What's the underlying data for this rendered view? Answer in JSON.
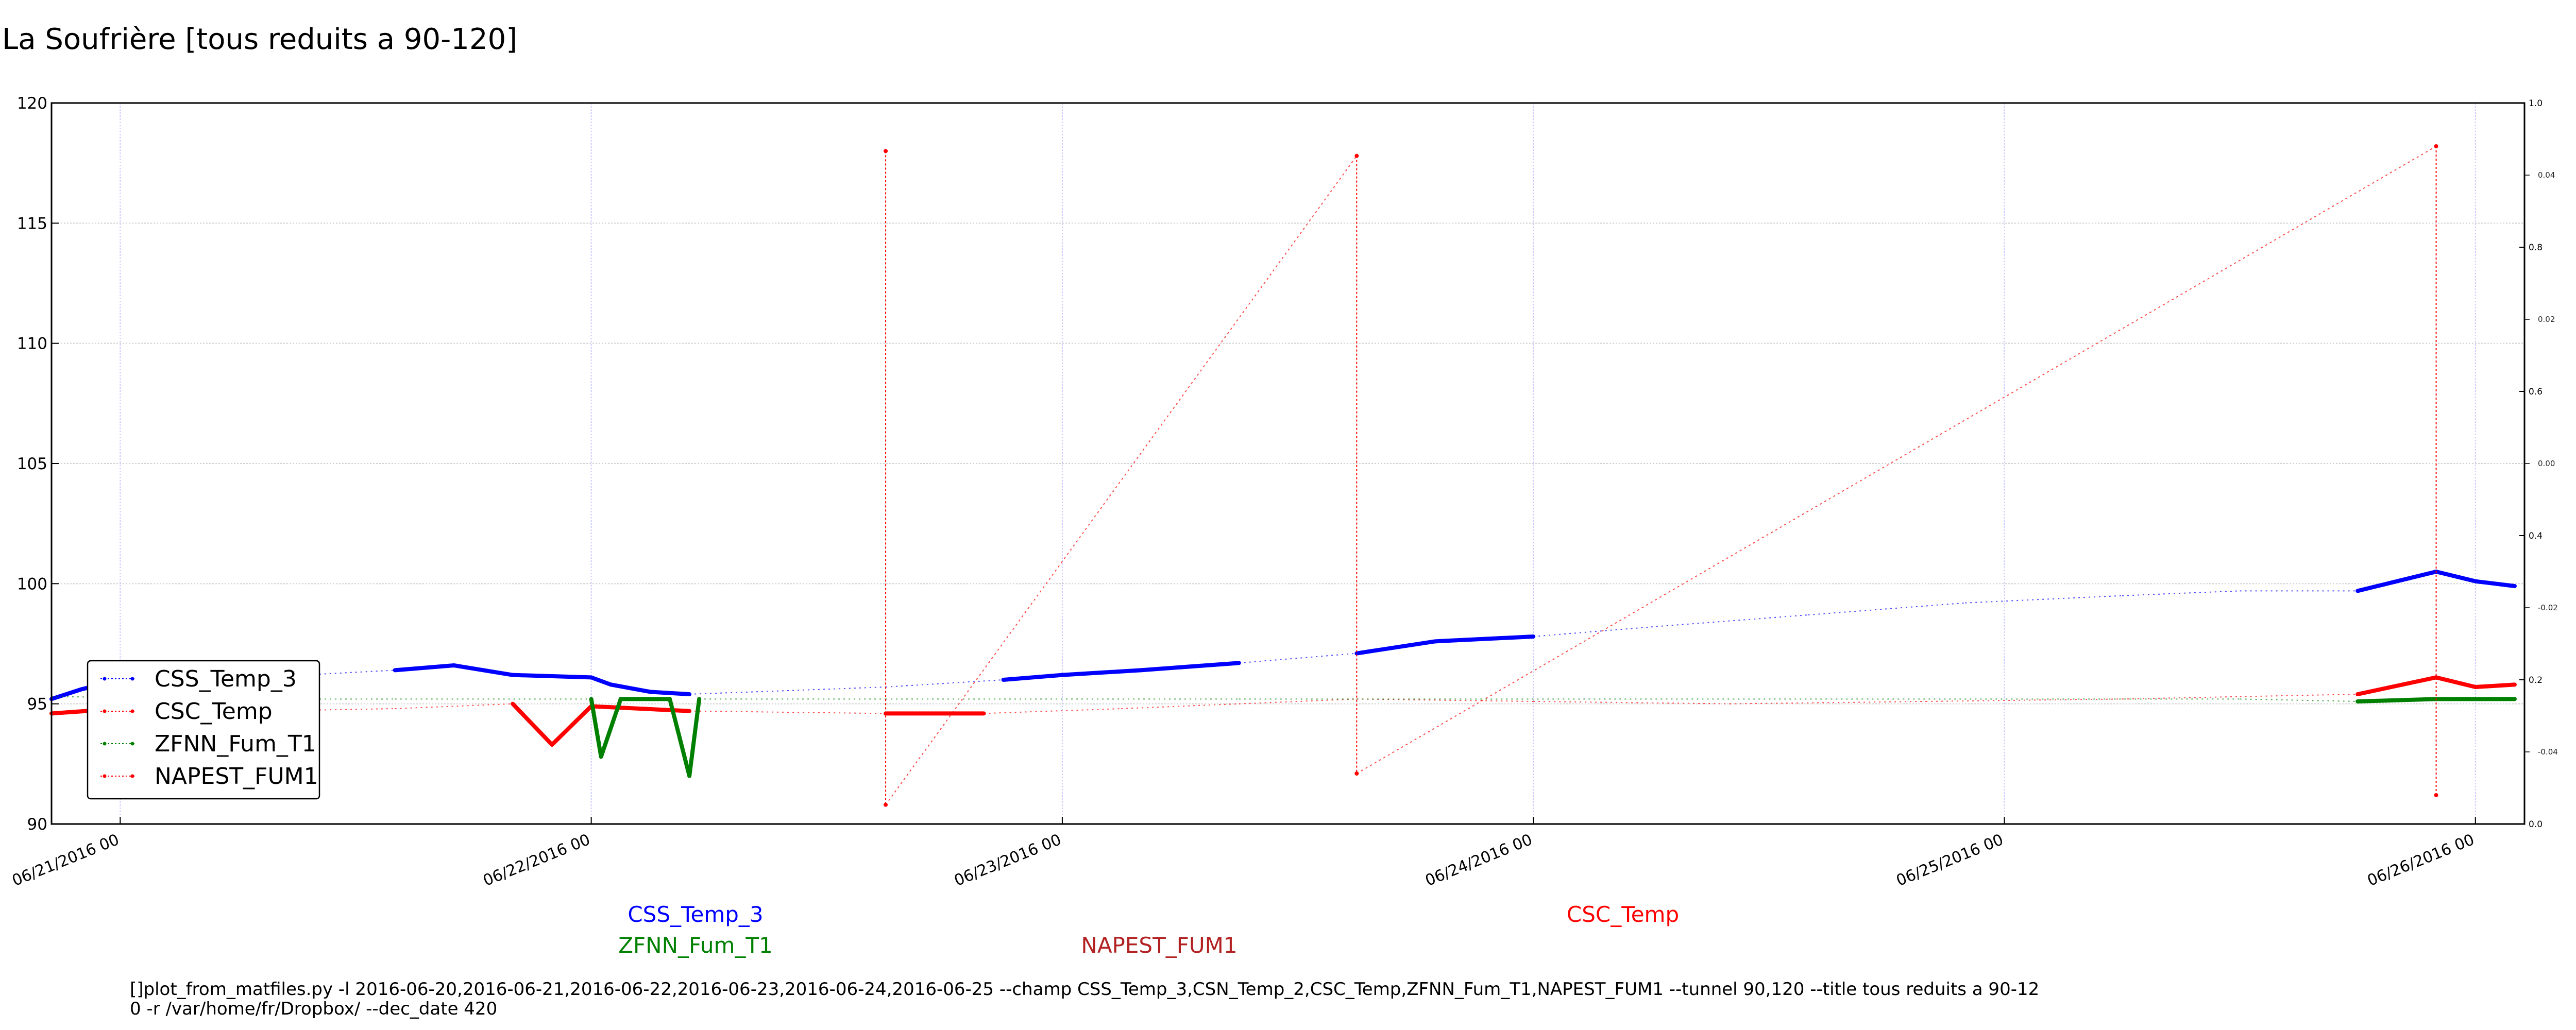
{
  "chart_data": {
    "type": "line",
    "title": "La Soufrière [tous reduits a 90-120]",
    "xlabel": "",
    "ylabel": "",
    "xlim": [
      "2016-06-20 20:30",
      "2016-06-26 02:30"
    ],
    "ylim": [
      90,
      120
    ],
    "grid": true,
    "legend_position": "lower-left",
    "x_tick_labels": [
      "06/21/2016 00",
      "06/22/2016 00",
      "06/23/2016 00",
      "06/24/2016 00",
      "06/25/2016 00",
      "06/26/2016 00"
    ],
    "y_tick_labels": [
      "90",
      "95",
      "100",
      "105",
      "110",
      "115",
      "120"
    ],
    "y2_tick_labels": [
      "0.0",
      "0.2",
      "0.4",
      "0.6",
      "0.8",
      "1.0"
    ],
    "y3_tick_labels": [
      "-0.04",
      "-0.02",
      "0.00",
      "0.02",
      "0.04"
    ],
    "series": [
      {
        "name": "CSS_Temp_3",
        "color": "#0000ff",
        "points": [
          [
            "2016-06-20 20:30",
            95.2
          ],
          [
            "2016-06-20 22:00",
            95.6
          ],
          [
            "2016-06-21 00:00",
            96.0
          ],
          [
            "2016-06-21 03:00",
            96.1
          ],
          [
            "2016-06-21 07:00",
            96.1
          ],
          [
            "2016-06-21 14:00",
            96.4
          ],
          [
            "2016-06-21 17:00",
            96.6
          ],
          [
            "2016-06-21 20:00",
            96.2
          ],
          [
            "2016-06-22 00:00",
            96.1
          ],
          [
            "2016-06-22 01:00",
            95.8
          ],
          [
            "2016-06-22 03:00",
            95.5
          ],
          [
            "2016-06-22 05:00",
            95.4
          ],
          [
            "2016-06-22 15:00",
            95.7
          ],
          [
            "2016-06-22 21:00",
            96.0
          ],
          [
            "2016-06-23 00:00",
            96.2
          ],
          [
            "2016-06-23 04:00",
            96.4
          ],
          [
            "2016-06-23 09:00",
            96.7
          ],
          [
            "2016-06-23 15:00",
            97.1
          ],
          [
            "2016-06-23 19:00",
            97.6
          ],
          [
            "2016-06-24 00:00",
            97.8
          ],
          [
            "2016-06-24 06:00",
            98.2
          ],
          [
            "2016-06-24 14:00",
            98.7
          ],
          [
            "2016-06-24 22:00",
            99.2
          ],
          [
            "2016-06-25 06:00",
            99.5
          ],
          [
            "2016-06-25 12:00",
            99.7
          ],
          [
            "2016-06-25 18:00",
            99.7
          ],
          [
            "2016-06-25 22:00",
            100.5
          ],
          [
            "2016-06-26 00:00",
            100.1
          ],
          [
            "2016-06-26 02:00",
            99.9
          ]
        ]
      },
      {
        "name": "CSC_Temp",
        "color": "#ff0000",
        "points": [
          [
            "2016-06-20 20:30",
            94.6
          ],
          [
            "2016-06-21 00:00",
            94.8
          ],
          [
            "2016-06-21 07:00",
            94.7
          ],
          [
            "2016-06-21 14:00",
            94.8
          ],
          [
            "2016-06-21 20:00",
            95.0
          ],
          [
            "2016-06-21 22:00",
            93.3
          ],
          [
            "2016-06-22 00:00",
            94.9
          ],
          [
            "2016-06-22 05:00",
            94.7
          ],
          [
            "2016-06-22 15:00",
            94.6
          ],
          [
            "2016-06-22 20:00",
            94.6
          ],
          [
            "2016-06-23 03:00",
            94.8
          ],
          [
            "2016-06-23 09:00",
            95.0
          ],
          [
            "2016-06-23 15:00",
            95.2
          ],
          [
            "2016-06-24 00:00",
            95.1
          ],
          [
            "2016-06-24 10:00",
            95.0
          ],
          [
            "2016-06-24 20:00",
            95.1
          ],
          [
            "2016-06-25 06:00",
            95.2
          ],
          [
            "2016-06-25 12:00",
            95.3
          ],
          [
            "2016-06-25 18:00",
            95.4
          ],
          [
            "2016-06-25 22:00",
            96.1
          ],
          [
            "2016-06-26 00:00",
            95.7
          ],
          [
            "2016-06-26 02:00",
            95.8
          ]
        ]
      },
      {
        "name": "ZFNN_Fum_T1",
        "color": "#008000",
        "points": [
          [
            "2016-06-20 20:30",
            95.3
          ],
          [
            "2016-06-21 07:00",
            95.2
          ],
          [
            "2016-06-21 14:00",
            95.2
          ],
          [
            "2016-06-22 00:00",
            95.2
          ],
          [
            "2016-06-22 00:30",
            92.8
          ],
          [
            "2016-06-22 01:30",
            95.2
          ],
          [
            "2016-06-22 04:00",
            95.2
          ],
          [
            "2016-06-22 05:00",
            92.0
          ],
          [
            "2016-06-22 05:30",
            95.2
          ],
          [
            "2016-06-22 15:00",
            95.2
          ],
          [
            "2016-06-23 09:00",
            95.2
          ],
          [
            "2016-06-23 15:00",
            95.2
          ],
          [
            "2016-06-24 12:00",
            95.2
          ],
          [
            "2016-06-25 12:00",
            95.2
          ],
          [
            "2016-06-25 18:00",
            95.1
          ],
          [
            "2016-06-25 22:00",
            95.2
          ],
          [
            "2016-06-26 02:00",
            95.2
          ]
        ]
      },
      {
        "name": "NAPEST_FUM1",
        "color": "#ff0000",
        "points": [
          [
            "2016-06-22 15:00",
            118.0
          ],
          [
            "2016-06-22 15:00",
            90.8
          ],
          [
            "2016-06-23 15:00",
            117.8
          ],
          [
            "2016-06-23 15:00",
            92.1
          ],
          [
            "2016-06-25 22:00",
            118.2
          ],
          [
            "2016-06-25 22:00",
            91.2
          ]
        ]
      }
    ]
  },
  "legend": {
    "items": [
      {
        "label": "CSS_Temp_3",
        "color": "#0000ff"
      },
      {
        "label": "CSC_Temp",
        "color": "#ff0000"
      },
      {
        "label": "ZFNN_Fum_T1",
        "color": "#008000"
      },
      {
        "label": "NAPEST_FUM1",
        "color": "#ff0000"
      }
    ]
  },
  "bottom_labels": {
    "css_temp_3": {
      "text": "CSS_Temp_3",
      "color": "#0000ff"
    },
    "csc_temp": {
      "text": "CSC_Temp",
      "color": "#ff0000"
    },
    "zfnn_fum_t1": {
      "text": "ZFNN_Fum_T1",
      "color": "#008000"
    },
    "napest_fum1": {
      "text": "NAPEST_FUM1",
      "color": "#b22222"
    }
  },
  "footer": {
    "line1": "[]plot_from_matfiles.py -l 2016-06-20,2016-06-21,2016-06-22,2016-06-23,2016-06-24,2016-06-25 --champ CSS_Temp_3,CSN_Temp_2,CSC_Temp,ZFNN_Fum_T1,NAPEST_FUM1 --tunnel 90,120 --title tous reduits a 90-12",
    "line2": "0 -r /var/home/fr/Dropbox/ --dec_date 420"
  }
}
